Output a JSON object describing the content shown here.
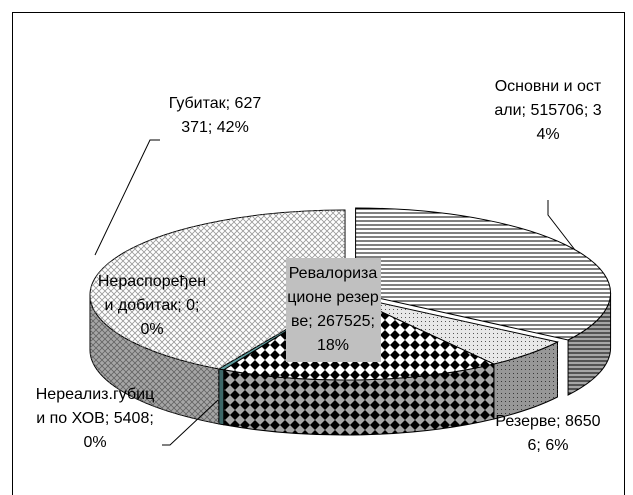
{
  "chart_data": {
    "type": "pie3d",
    "categories": [
      "Основни и остали",
      "Резерве",
      "Ревалоризационе резерве",
      "Нереализ.губици по ХОВ",
      "Нераспоређени добитак",
      "Губитак"
    ],
    "values": [
      515706,
      86506,
      267525,
      5408,
      0,
      627371
    ],
    "value_labels": [
      "Основни и остали; 515706; 34%",
      "Резерве; 86506; 6%",
      "Ревалоризационе резерве; 267525; 18%",
      "Нереализ.губици по ХОВ; 5408; 0%",
      "Нераспоређени добитак; 0; 0%",
      "Губитак; 627371; 42%"
    ],
    "colors": [
      "#ffffff",
      "#e8e8e8",
      "#ffffff",
      "#5f9ea0",
      "#808080",
      "#ffffff"
    ]
  }
}
